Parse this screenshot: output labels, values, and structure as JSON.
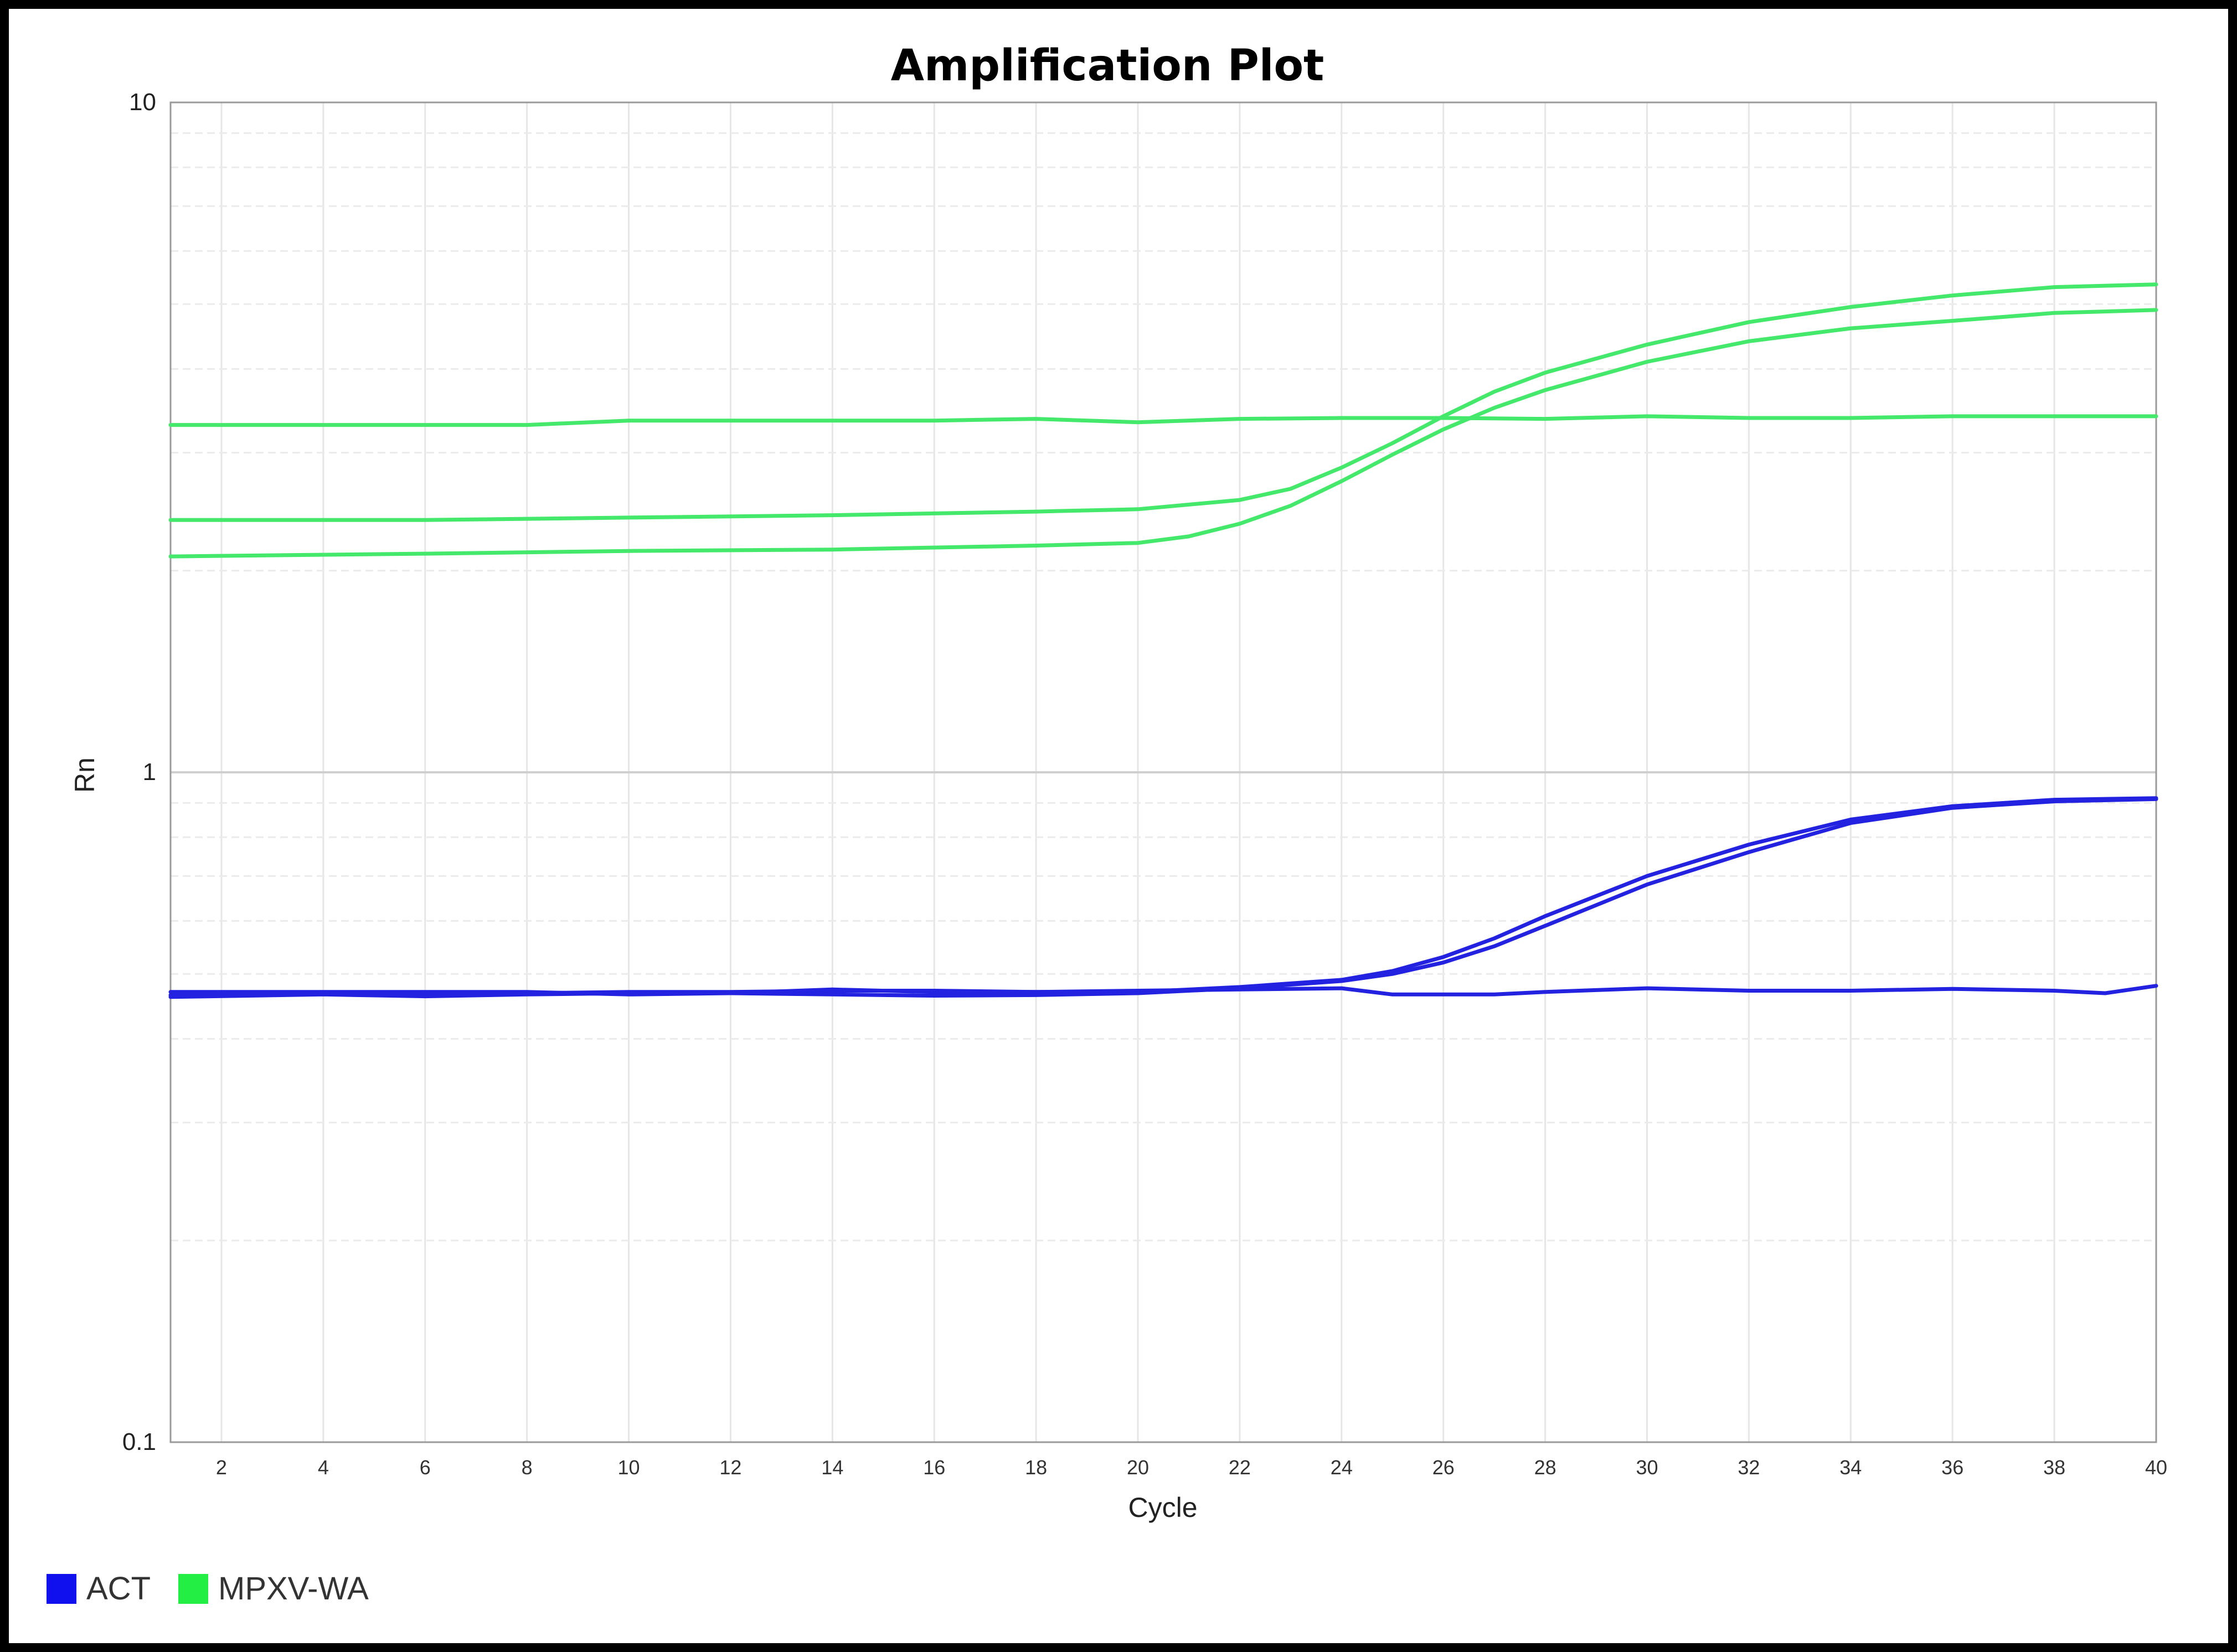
{
  "chart_data": {
    "type": "line",
    "title": "Amplification Plot",
    "xlabel": "Cycle",
    "ylabel": "Rn",
    "xlim": [
      1,
      40
    ],
    "ylim": [
      0.1,
      10
    ],
    "yscale": "log",
    "xticks": [
      2,
      4,
      6,
      8,
      10,
      12,
      14,
      16,
      18,
      20,
      22,
      24,
      26,
      28,
      30,
      32,
      34,
      36,
      38,
      40
    ],
    "yticks": [
      {
        "value": 10,
        "label": "10"
      },
      {
        "value": 1,
        "label": "1"
      },
      {
        "value": 0.1,
        "label": "0.1"
      }
    ],
    "grid": true,
    "legend_position": "bottom-left",
    "legend": [
      {
        "label": "ACT",
        "color": "#1010ee"
      },
      {
        "label": "MPXV-WA",
        "color": "#22ee44"
      }
    ],
    "series": [
      {
        "group": "MPXV-WA",
        "color": "#44e86a",
        "x": [
          1,
          8,
          10,
          16,
          18,
          20,
          22,
          24,
          26,
          28,
          30,
          32,
          34,
          36,
          38,
          40
        ],
        "y": [
          3.3,
          3.3,
          3.35,
          3.35,
          3.37,
          3.33,
          3.37,
          3.38,
          3.38,
          3.37,
          3.4,
          3.38,
          3.38,
          3.4,
          3.4,
          3.4
        ]
      },
      {
        "group": "MPXV-WA",
        "color": "#44e86a",
        "x": [
          1,
          6,
          10,
          14,
          18,
          20,
          22,
          23,
          24,
          25,
          26,
          27,
          28,
          30,
          32,
          34,
          36,
          38,
          40
        ],
        "y": [
          2.38,
          2.38,
          2.4,
          2.42,
          2.45,
          2.47,
          2.55,
          2.65,
          2.85,
          3.1,
          3.4,
          3.7,
          3.95,
          4.35,
          4.7,
          4.95,
          5.15,
          5.3,
          5.35
        ]
      },
      {
        "group": "MPXV-WA",
        "color": "#44e86a",
        "x": [
          1,
          6,
          10,
          14,
          18,
          20,
          21,
          22,
          23,
          24,
          25,
          26,
          27,
          28,
          30,
          32,
          34,
          36,
          38,
          40
        ],
        "y": [
          2.1,
          2.12,
          2.14,
          2.15,
          2.18,
          2.2,
          2.25,
          2.35,
          2.5,
          2.72,
          2.98,
          3.25,
          3.5,
          3.72,
          4.1,
          4.4,
          4.6,
          4.72,
          4.85,
          4.9
        ]
      },
      {
        "group": "ACT",
        "color": "#2222e0",
        "x": [
          1,
          4,
          6,
          8,
          10,
          12,
          14,
          16,
          18,
          20,
          22,
          24,
          25,
          26,
          27,
          28,
          30,
          32,
          34,
          36,
          38,
          40
        ],
        "y": [
          0.465,
          0.468,
          0.465,
          0.468,
          0.47,
          0.47,
          0.472,
          0.472,
          0.47,
          0.47,
          0.478,
          0.49,
          0.505,
          0.53,
          0.565,
          0.61,
          0.7,
          0.78,
          0.85,
          0.89,
          0.91,
          0.915
        ]
      },
      {
        "group": "ACT",
        "color": "#2222e0",
        "x": [
          1,
          4,
          6,
          8,
          10,
          12,
          14,
          16,
          18,
          20,
          22,
          24,
          25,
          26,
          27,
          28,
          30,
          32,
          34,
          36,
          38,
          40
        ],
        "y": [
          0.462,
          0.466,
          0.463,
          0.466,
          0.468,
          0.468,
          0.466,
          0.464,
          0.465,
          0.468,
          0.476,
          0.488,
          0.5,
          0.52,
          0.55,
          0.59,
          0.68,
          0.76,
          0.84,
          0.885,
          0.905,
          0.912
        ]
      },
      {
        "group": "ACT",
        "color": "#2222e0",
        "x": [
          1,
          4,
          8,
          10,
          12,
          14,
          16,
          18,
          20,
          22,
          24,
          25,
          26,
          27,
          28,
          29,
          30,
          32,
          34,
          36,
          38,
          39,
          40
        ],
        "y": [
          0.47,
          0.47,
          0.47,
          0.466,
          0.468,
          0.474,
          0.47,
          0.47,
          0.472,
          0.474,
          0.476,
          0.466,
          0.466,
          0.466,
          0.47,
          0.473,
          0.476,
          0.472,
          0.472,
          0.475,
          0.472,
          0.468,
          0.48
        ]
      }
    ]
  }
}
